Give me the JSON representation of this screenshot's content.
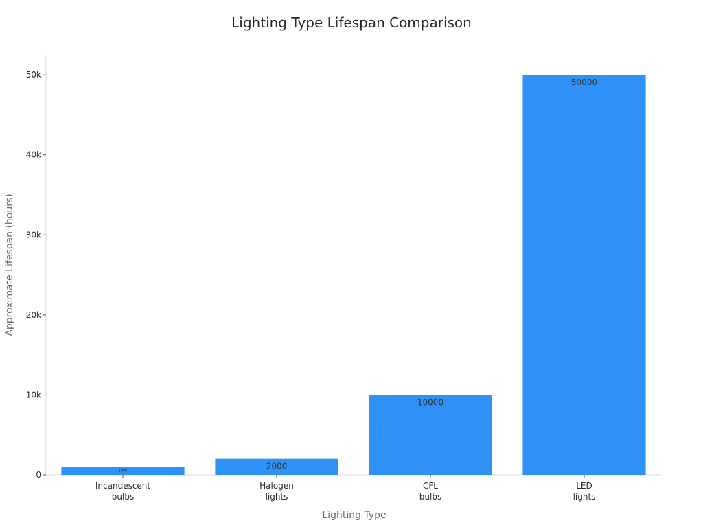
{
  "chart_data": {
    "type": "bar",
    "title": "Lighting Type Lifespan Comparison",
    "xlabel": "Lighting Type",
    "ylabel": "Approximate Lifespan (hours)",
    "categories": [
      [
        "Incandescent",
        "bulbs"
      ],
      [
        "Halogen",
        "lights"
      ],
      [
        "CFL",
        "bulbs"
      ],
      [
        "LED",
        "lights"
      ]
    ],
    "values": [
      1000,
      2000,
      10000,
      50000
    ],
    "data_labels": [
      "1000",
      "2000",
      "10000",
      "50000"
    ],
    "ylim": [
      0,
      52500
    ],
    "yticks": [
      0,
      10000,
      20000,
      30000,
      40000,
      50000
    ],
    "ytick_labels": [
      "0",
      "10k",
      "20k",
      "30k",
      "40k",
      "50k"
    ],
    "bar_color": "#2e91f7",
    "grid": false,
    "legend": "none"
  }
}
